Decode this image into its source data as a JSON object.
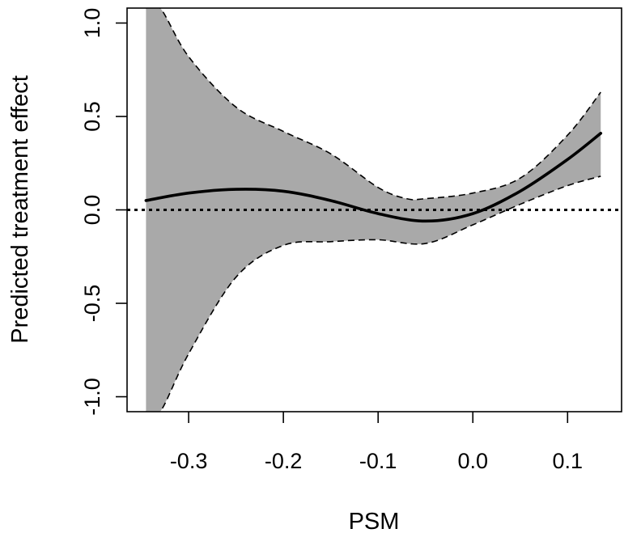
{
  "chart_data": {
    "type": "line",
    "title": "",
    "xlabel": "PSM",
    "ylabel": "Predicted treatment effect",
    "xlim": [
      -0.365,
      0.157
    ],
    "ylim": [
      -1.08,
      1.08
    ],
    "x_ticks": [
      -0.3,
      -0.2,
      -0.1,
      0.0,
      0.1
    ],
    "x_tick_labels": [
      "-0.3",
      "-0.2",
      "-0.1",
      "0.0",
      "0.1"
    ],
    "y_ticks": [
      -1.0,
      -0.5,
      0.0,
      0.5,
      1.0
    ],
    "y_tick_labels": [
      "-1.0",
      "-0.5",
      "0.0",
      "0.5",
      "1.0"
    ],
    "grid": false,
    "reference_line": {
      "y": 0.0,
      "style": "dotted"
    },
    "series": [
      {
        "role": "estimate",
        "style": "solid",
        "x": [
          -0.345,
          -0.3,
          -0.25,
          -0.2,
          -0.15,
          -0.1,
          -0.05,
          0.0,
          0.05,
          0.1,
          0.135
        ],
        "y": [
          0.05,
          0.09,
          0.11,
          0.1,
          0.05,
          -0.02,
          -0.06,
          -0.02,
          0.1,
          0.27,
          0.41
        ]
      },
      {
        "role": "upper_ci",
        "style": "dashed",
        "x": [
          -0.345,
          -0.33,
          -0.3,
          -0.25,
          -0.2,
          -0.15,
          -0.1,
          -0.07,
          -0.05,
          0.0,
          0.05,
          0.1,
          0.135
        ],
        "y": [
          1.08,
          1.08,
          0.82,
          0.55,
          0.42,
          0.3,
          0.12,
          0.06,
          0.06,
          0.09,
          0.17,
          0.4,
          0.63
        ]
      },
      {
        "role": "lower_ci",
        "style": "dashed",
        "x": [
          -0.345,
          -0.33,
          -0.3,
          -0.25,
          -0.2,
          -0.15,
          -0.1,
          -0.05,
          0.0,
          0.05,
          0.1,
          0.135
        ],
        "y": [
          -1.08,
          -1.08,
          -0.77,
          -0.36,
          -0.19,
          -0.17,
          -0.16,
          -0.18,
          -0.08,
          0.03,
          0.13,
          0.18
        ]
      }
    ],
    "band_color": "#a9a9a9",
    "line_color": "#000000"
  }
}
